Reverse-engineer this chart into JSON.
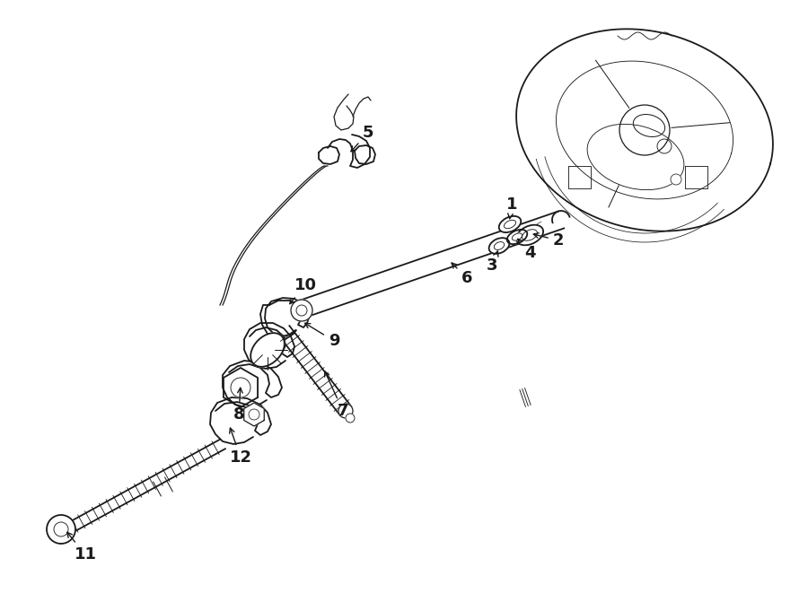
{
  "background_color": "#ffffff",
  "line_color": "#1a1a1a",
  "figsize": [
    9.0,
    6.61
  ],
  "dpi": 100,
  "img_extent": [
    0,
    900,
    0,
    661
  ]
}
